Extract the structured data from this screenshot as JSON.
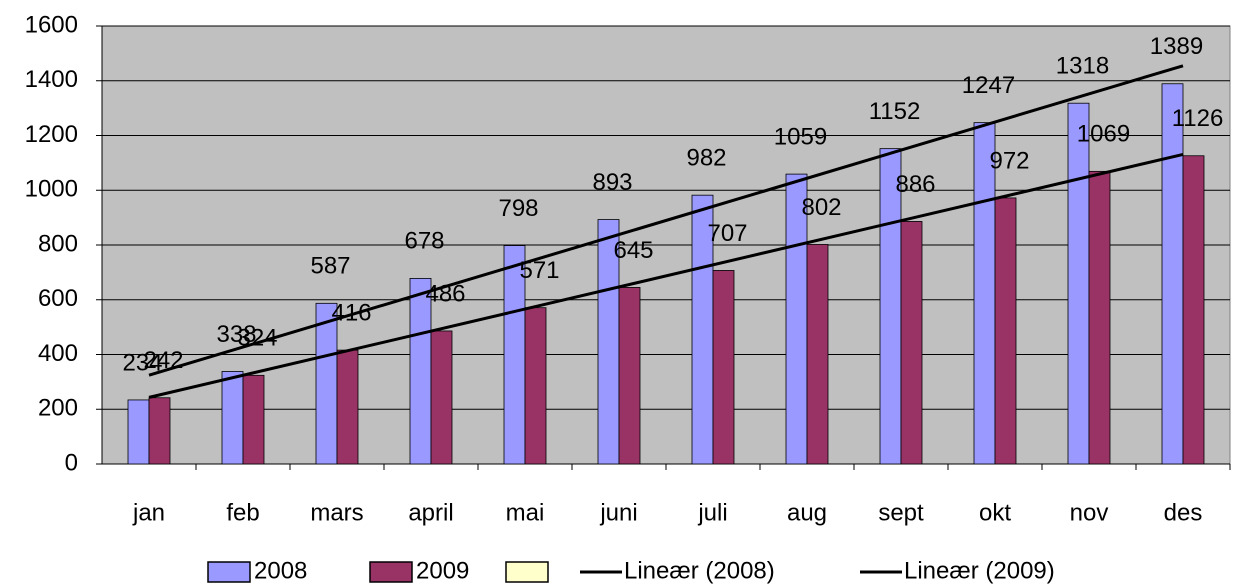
{
  "chart_data": {
    "type": "bar",
    "categories": [
      "jan",
      "feb",
      "mars",
      "april",
      "mai",
      "juni",
      "juli",
      "aug",
      "sept",
      "okt",
      "nov",
      "des"
    ],
    "series": [
      {
        "name": "2008",
        "color": "#9999ff",
        "trendline": "Lineær (2008)",
        "values": [
          234,
          338,
          587,
          678,
          798,
          893,
          982,
          1059,
          1152,
          1247,
          1318,
          1389
        ]
      },
      {
        "name": "2009",
        "color": "#993366",
        "trendline": "Lineær (2009)",
        "values": [
          242,
          324,
          416,
          486,
          571,
          645,
          707,
          802,
          886,
          972,
          1069,
          1126
        ]
      }
    ],
    "ylim": [
      0,
      1600
    ],
    "yticks": [
      0,
      200,
      400,
      600,
      800,
      1000,
      1200,
      1400,
      1600
    ],
    "grid": true,
    "trendline_color": "#000000",
    "plot_background": "#c0c0c0"
  }
}
